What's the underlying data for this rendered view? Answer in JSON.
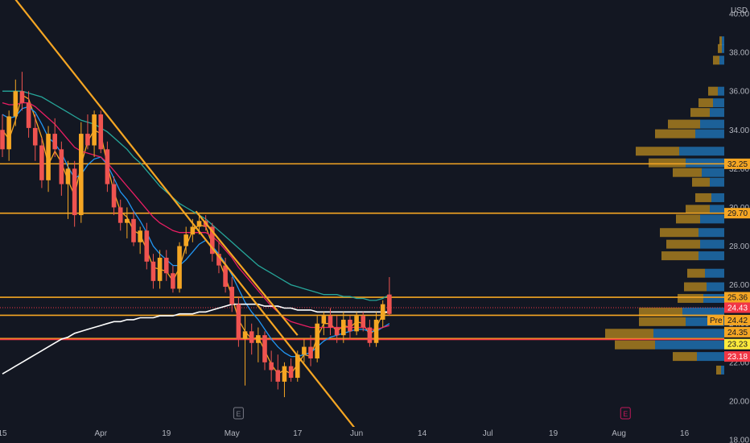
{
  "chart_data": {
    "type": "candlestick",
    "currency_label": "USD",
    "y_ticks": [
      18,
      20,
      22,
      24,
      26,
      28,
      30,
      32,
      34,
      36,
      38,
      40
    ],
    "y_tick_labels": [
      "18.00",
      "20.00",
      "22.00",
      "24.00",
      "26.00",
      "28.00",
      "30.00",
      "32.00",
      "34.00",
      "36.00",
      "38.00",
      "40.00"
    ],
    "ylim": [
      18,
      40.5
    ],
    "x_labels": [
      {
        "label": "15",
        "t": 0
      },
      {
        "label": "Apr",
        "t": 15
      },
      {
        "label": "19",
        "t": 25
      },
      {
        "label": "May",
        "t": 35
      },
      {
        "label": "17",
        "t": 45
      },
      {
        "label": "Jun",
        "t": 54
      },
      {
        "label": "14",
        "t": 64
      },
      {
        "label": "Jul",
        "t": 74
      },
      {
        "label": "19",
        "t": 84
      },
      {
        "label": "Aug",
        "t": 94
      },
      {
        "label": "16",
        "t": 104
      }
    ],
    "earnings_markers": [
      {
        "label": "E",
        "t": 36,
        "color": "#787b86"
      },
      {
        "label": "E",
        "t": 95,
        "color": "#c2185b"
      }
    ],
    "candles": [
      {
        "o": 34.0,
        "h": 34.8,
        "l": 32.6,
        "c": 33.0
      },
      {
        "o": 33.0,
        "h": 35.0,
        "l": 32.4,
        "c": 34.7
      },
      {
        "o": 34.7,
        "h": 36.6,
        "l": 34.2,
        "c": 36.0
      },
      {
        "o": 36.0,
        "h": 37.0,
        "l": 35.0,
        "c": 35.4
      },
      {
        "o": 35.4,
        "h": 36.0,
        "l": 33.6,
        "c": 34.1
      },
      {
        "o": 34.1,
        "h": 34.8,
        "l": 32.4,
        "c": 33.2
      },
      {
        "o": 33.2,
        "h": 33.6,
        "l": 31.0,
        "c": 31.4
      },
      {
        "o": 31.4,
        "h": 34.2,
        "l": 30.8,
        "c": 33.8
      },
      {
        "o": 33.8,
        "h": 34.6,
        "l": 32.6,
        "c": 33.0
      },
      {
        "o": 33.0,
        "h": 33.4,
        "l": 30.6,
        "c": 31.2
      },
      {
        "o": 31.2,
        "h": 32.4,
        "l": 29.4,
        "c": 32.0
      },
      {
        "o": 32.0,
        "h": 32.4,
        "l": 29.0,
        "c": 29.6
      },
      {
        "o": 29.6,
        "h": 34.4,
        "l": 29.2,
        "c": 33.8
      },
      {
        "o": 33.8,
        "h": 34.8,
        "l": 33.0,
        "c": 33.2
      },
      {
        "o": 33.2,
        "h": 35.0,
        "l": 32.6,
        "c": 34.8
      },
      {
        "o": 34.8,
        "h": 35.0,
        "l": 32.8,
        "c": 33.0
      },
      {
        "o": 33.0,
        "h": 33.4,
        "l": 30.8,
        "c": 31.2
      },
      {
        "o": 31.2,
        "h": 31.6,
        "l": 29.6,
        "c": 30.0
      },
      {
        "o": 30.0,
        "h": 30.4,
        "l": 28.8,
        "c": 29.2
      },
      {
        "o": 29.2,
        "h": 30.0,
        "l": 28.4,
        "c": 29.4
      },
      {
        "o": 29.4,
        "h": 29.8,
        "l": 28.0,
        "c": 28.2
      },
      {
        "o": 28.2,
        "h": 29.0,
        "l": 27.6,
        "c": 28.8
      },
      {
        "o": 28.8,
        "h": 29.2,
        "l": 26.8,
        "c": 27.2
      },
      {
        "o": 27.2,
        "h": 27.6,
        "l": 25.8,
        "c": 26.2
      },
      {
        "o": 26.2,
        "h": 27.8,
        "l": 25.8,
        "c": 27.4
      },
      {
        "o": 27.4,
        "h": 27.8,
        "l": 26.2,
        "c": 26.6
      },
      {
        "o": 26.6,
        "h": 27.0,
        "l": 25.6,
        "c": 25.8
      },
      {
        "o": 25.8,
        "h": 28.2,
        "l": 25.6,
        "c": 28.0
      },
      {
        "o": 28.0,
        "h": 29.0,
        "l": 27.6,
        "c": 28.6
      },
      {
        "o": 28.6,
        "h": 29.4,
        "l": 28.2,
        "c": 29.0
      },
      {
        "o": 29.0,
        "h": 29.6,
        "l": 28.6,
        "c": 29.3
      },
      {
        "o": 29.3,
        "h": 29.6,
        "l": 28.8,
        "c": 29.0
      },
      {
        "o": 29.0,
        "h": 29.2,
        "l": 27.2,
        "c": 27.6
      },
      {
        "o": 27.6,
        "h": 28.2,
        "l": 26.6,
        "c": 27.0
      },
      {
        "o": 27.0,
        "h": 27.4,
        "l": 25.6,
        "c": 25.9
      },
      {
        "o": 25.9,
        "h": 26.4,
        "l": 24.6,
        "c": 25.0
      },
      {
        "o": 25.0,
        "h": 25.4,
        "l": 22.8,
        "c": 23.2
      },
      {
        "o": 23.2,
        "h": 24.4,
        "l": 20.8,
        "c": 23.6
      },
      {
        "o": 23.6,
        "h": 24.0,
        "l": 22.4,
        "c": 23.0
      },
      {
        "o": 23.0,
        "h": 23.8,
        "l": 22.0,
        "c": 23.4
      },
      {
        "o": 23.4,
        "h": 23.6,
        "l": 21.6,
        "c": 22.0
      },
      {
        "o": 22.0,
        "h": 22.6,
        "l": 21.0,
        "c": 21.6
      },
      {
        "o": 21.6,
        "h": 22.4,
        "l": 20.6,
        "c": 21.0
      },
      {
        "o": 21.0,
        "h": 22.0,
        "l": 20.2,
        "c": 21.8
      },
      {
        "o": 21.8,
        "h": 22.2,
        "l": 21.0,
        "c": 21.2
      },
      {
        "o": 21.2,
        "h": 22.6,
        "l": 21.0,
        "c": 22.4
      },
      {
        "o": 22.4,
        "h": 23.2,
        "l": 22.0,
        "c": 22.8
      },
      {
        "o": 22.8,
        "h": 23.4,
        "l": 21.8,
        "c": 22.2
      },
      {
        "o": 22.2,
        "h": 24.4,
        "l": 22.0,
        "c": 24.0
      },
      {
        "o": 24.0,
        "h": 24.6,
        "l": 23.4,
        "c": 24.4
      },
      {
        "o": 24.4,
        "h": 24.8,
        "l": 23.4,
        "c": 23.8
      },
      {
        "o": 23.8,
        "h": 24.4,
        "l": 23.0,
        "c": 23.4
      },
      {
        "o": 23.4,
        "h": 24.6,
        "l": 23.0,
        "c": 24.2
      },
      {
        "o": 24.2,
        "h": 24.4,
        "l": 23.2,
        "c": 23.6
      },
      {
        "o": 23.6,
        "h": 24.6,
        "l": 23.4,
        "c": 24.4
      },
      {
        "o": 24.4,
        "h": 24.6,
        "l": 23.6,
        "c": 23.8
      },
      {
        "o": 23.8,
        "h": 24.2,
        "l": 22.8,
        "c": 23.0
      },
      {
        "o": 23.0,
        "h": 24.6,
        "l": 22.8,
        "c": 24.2
      },
      {
        "o": 24.2,
        "h": 25.2,
        "l": 23.8,
        "c": 25.0
      },
      {
        "o": 25.5,
        "h": 26.4,
        "l": 24.4,
        "c": 24.5
      }
    ],
    "moving_averages": [
      {
        "color": "#f5a623",
        "values": [
          34.0,
          33.5,
          34.5,
          35.8,
          35.6,
          34.6,
          33.6,
          32.2,
          32.9,
          32.3,
          31.4,
          30.6,
          32.2,
          33.4,
          34.0,
          33.8,
          32.2,
          30.8,
          29.8,
          29.5,
          28.8,
          28.6,
          27.8,
          26.9,
          26.8,
          26.7,
          26.2,
          26.9,
          28.0,
          28.8,
          29.1,
          29.0,
          28.1,
          27.3,
          26.4,
          25.4,
          24.2,
          23.6,
          23.2,
          23.3,
          22.6,
          21.9,
          21.4,
          21.6,
          21.4,
          21.9,
          22.4,
          22.3,
          23.3,
          24.0,
          24.0,
          23.6,
          23.9,
          23.8,
          24.1,
          24.0,
          23.4,
          23.8,
          24.5,
          24.6
        ]
      },
      {
        "color": "#2196f3",
        "values": [
          34.8,
          34.6,
          34.7,
          35.1,
          35.2,
          34.9,
          34.3,
          33.6,
          33.3,
          32.8,
          32.1,
          31.5,
          31.7,
          32.2,
          32.5,
          32.6,
          32.2,
          31.5,
          30.8,
          30.4,
          29.8,
          29.3,
          28.7,
          28.0,
          27.6,
          27.3,
          27.0,
          27.0,
          27.3,
          27.7,
          28.1,
          28.3,
          28.0,
          27.6,
          27.1,
          26.5,
          25.8,
          25.1,
          24.6,
          24.2,
          23.7,
          23.2,
          22.8,
          22.5,
          22.3,
          22.3,
          22.4,
          22.5,
          22.8,
          23.1,
          23.3,
          23.4,
          23.5,
          23.6,
          23.7,
          23.7,
          23.6,
          23.6,
          23.8,
          24.0
        ]
      },
      {
        "color": "#e91e63",
        "values": [
          35.4,
          35.3,
          35.3,
          35.4,
          35.4,
          35.2,
          34.9,
          34.6,
          34.3,
          33.9,
          33.5,
          33.1,
          32.9,
          32.8,
          32.7,
          32.6,
          32.3,
          31.9,
          31.5,
          31.1,
          30.7,
          30.3,
          29.9,
          29.5,
          29.2,
          29.0,
          28.8,
          28.7,
          28.7,
          28.7,
          28.7,
          28.7,
          28.5,
          28.2,
          27.8,
          27.4,
          26.9,
          26.5,
          26.1,
          25.7,
          25.3,
          24.9,
          24.6,
          24.3,
          24.1,
          24.0,
          23.9,
          23.8,
          23.8,
          23.8,
          23.8,
          23.8,
          23.8,
          23.8,
          23.8,
          23.8,
          23.7,
          23.7,
          23.8,
          23.9
        ]
      },
      {
        "color": "#26a69a",
        "values": [
          36.0,
          36.0,
          36.0,
          36.0,
          35.9,
          35.8,
          35.7,
          35.5,
          35.3,
          35.1,
          34.9,
          34.7,
          34.5,
          34.4,
          34.3,
          34.1,
          33.9,
          33.6,
          33.3,
          33.0,
          32.6,
          32.3,
          31.9,
          31.5,
          31.1,
          30.8,
          30.5,
          30.2,
          30.0,
          29.8,
          29.6,
          29.4,
          29.1,
          28.8,
          28.5,
          28.2,
          27.9,
          27.6,
          27.3,
          27.0,
          26.8,
          26.6,
          26.4,
          26.2,
          26.0,
          25.9,
          25.8,
          25.7,
          25.6,
          25.5,
          25.5,
          25.5,
          25.4,
          25.4,
          25.3,
          25.3,
          25.2,
          25.2,
          25.3,
          25.5
        ]
      },
      {
        "color": "#ffffff",
        "values": [
          21.4,
          21.6,
          21.8,
          22.0,
          22.2,
          22.4,
          22.6,
          22.8,
          23.0,
          23.2,
          23.3,
          23.5,
          23.6,
          23.7,
          23.8,
          23.9,
          24.0,
          24.1,
          24.1,
          24.2,
          24.2,
          24.3,
          24.3,
          24.3,
          24.4,
          24.4,
          24.4,
          24.5,
          24.5,
          24.5,
          24.6,
          24.6,
          24.7,
          24.8,
          24.9,
          25.0,
          25.0,
          25.0,
          25.0,
          25.0,
          24.9,
          24.9,
          24.9,
          24.8,
          24.8,
          24.7,
          24.7,
          24.7,
          24.6,
          24.6,
          24.6,
          24.6,
          24.6,
          24.6,
          24.6,
          24.6,
          24.6,
          24.6,
          24.6,
          24.6
        ]
      }
    ],
    "horizontal_levels": [
      {
        "value": 32.25,
        "color": "#f5a623"
      },
      {
        "value": 29.7,
        "color": "#f5a623"
      },
      {
        "value": 25.36,
        "color": "#f5a623"
      },
      {
        "value": 24.43,
        "color": "#f5a623"
      },
      {
        "value": 23.23,
        "color": "#f5a623"
      },
      {
        "value": 23.18,
        "color": "#f23645"
      }
    ],
    "trendlines": [
      {
        "t1": -6.8,
        "y1": 44.5,
        "t2": 55.6,
        "y2": 17.8,
        "color": "#f5a623"
      },
      {
        "t1": 29.5,
        "y1": 29.8,
        "t2": 45.0,
        "y2": 23.4,
        "color": "#f5a623"
      }
    ],
    "price_tags": [
      {
        "label": "32.25",
        "value": 32.25,
        "bg": "#f5a623",
        "fg": "#131722"
      },
      {
        "label": "29.70",
        "value": 29.7,
        "bg": "#f5a623",
        "fg": "#131722"
      },
      {
        "label": "25.36",
        "value": 25.36,
        "bg": "#f5a623",
        "fg": "#131722"
      },
      {
        "label": "24.43",
        "value": 24.82,
        "bg": "#f23645",
        "fg": "#ffffff"
      },
      {
        "label": "24.42",
        "value": 24.18,
        "bg": "#f5a623",
        "fg": "#131722",
        "pre": "Pre"
      },
      {
        "label": "24.35",
        "value": 23.56,
        "bg": "#f5a623",
        "fg": "#131722"
      },
      {
        "label": "23.23",
        "value": 22.94,
        "bg": "#ffeb3b",
        "fg": "#131722"
      },
      {
        "label": "23.18",
        "value": 22.3,
        "bg": "#f23645",
        "fg": "#ffffff"
      }
    ],
    "volume_profile": [
      {
        "y": 38.6,
        "up": 3,
        "down": 3
      },
      {
        "y": 38.2,
        "up": 5,
        "down": 3
      },
      {
        "y": 37.6,
        "up": 8,
        "down": 6
      },
      {
        "y": 36.0,
        "up": 12,
        "down": 8
      },
      {
        "y": 35.4,
        "up": 18,
        "down": 14
      },
      {
        "y": 34.9,
        "up": 24,
        "down": 18
      },
      {
        "y": 34.3,
        "up": 40,
        "down": 30
      },
      {
        "y": 33.8,
        "up": 50,
        "down": 36
      },
      {
        "y": 32.9,
        "up": 54,
        "down": 56
      },
      {
        "y": 32.3,
        "up": 46,
        "down": 48
      },
      {
        "y": 31.8,
        "up": 36,
        "down": 28
      },
      {
        "y": 31.3,
        "up": 22,
        "down": 18
      },
      {
        "y": 30.5,
        "up": 20,
        "down": 16
      },
      {
        "y": 29.9,
        "up": 30,
        "down": 18
      },
      {
        "y": 29.4,
        "up": 30,
        "down": 30
      },
      {
        "y": 28.7,
        "up": 48,
        "down": 32
      },
      {
        "y": 28.1,
        "up": 42,
        "down": 30
      },
      {
        "y": 27.5,
        "up": 46,
        "down": 32
      },
      {
        "y": 26.6,
        "up": 22,
        "down": 24
      },
      {
        "y": 25.9,
        "up": 28,
        "down": 22
      },
      {
        "y": 25.3,
        "up": 32,
        "down": 26
      },
      {
        "y": 24.6,
        "up": 54,
        "down": 52
      },
      {
        "y": 24.1,
        "up": 58,
        "down": 48
      },
      {
        "y": 23.5,
        "up": 60,
        "down": 88
      },
      {
        "y": 22.9,
        "up": 50,
        "down": 86
      },
      {
        "y": 22.3,
        "up": 30,
        "down": 34
      },
      {
        "y": 21.6,
        "up": 6,
        "down": 4
      }
    ]
  }
}
